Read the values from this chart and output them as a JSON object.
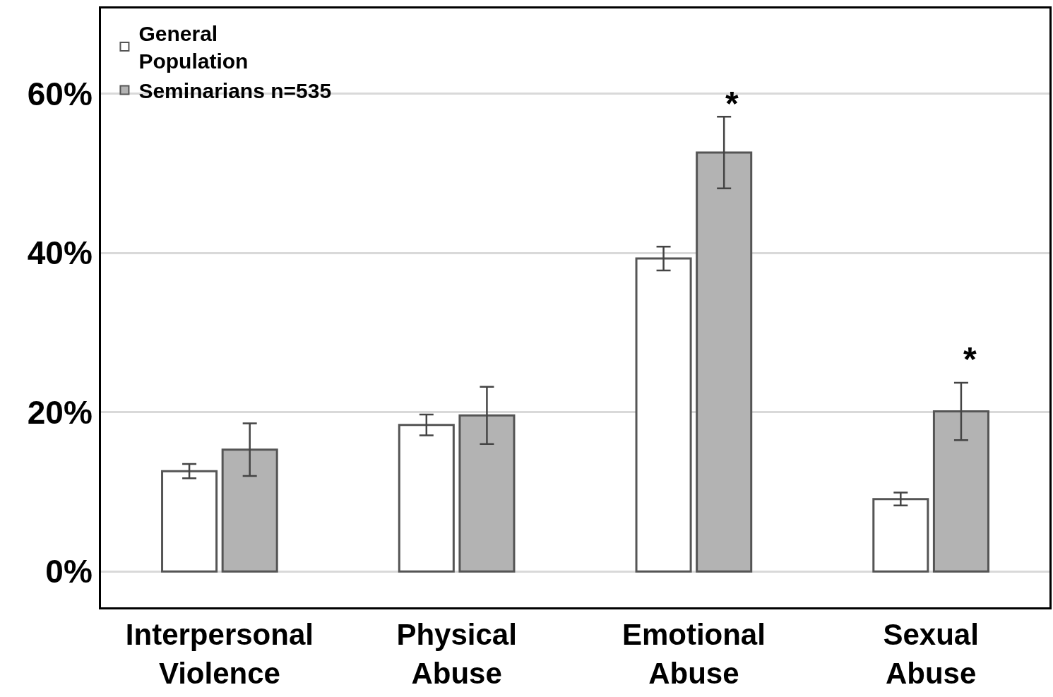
{
  "chart_data": {
    "type": "bar",
    "categories": [
      "Interpersonal\nViolence",
      "Physical\nAbuse",
      "Emotional\nAbuse",
      "Sexual\nAbuse"
    ],
    "series": [
      {
        "name": "General\nPopulation",
        "color": "#ffffff",
        "values": [
          12.6,
          18.4,
          39.3,
          9.1
        ],
        "errors": [
          0.9,
          1.3,
          1.5,
          0.8
        ]
      },
      {
        "name": "Seminarians n=535",
        "color": "#b3b3b3",
        "values": [
          15.3,
          19.6,
          52.6,
          20.1
        ],
        "errors": [
          3.3,
          3.6,
          4.5,
          3.6
        ]
      }
    ],
    "ylim": [
      -4.5,
      70.7
    ],
    "yticks": [
      {
        "value": 0,
        "label": "0%"
      },
      {
        "value": 20,
        "label": "20%"
      },
      {
        "value": 40,
        "label": "40%"
      },
      {
        "value": 60,
        "label": "60%"
      }
    ],
    "grid": "y",
    "legend": "top left",
    "annotations": [
      "*",
      "*"
    ]
  }
}
